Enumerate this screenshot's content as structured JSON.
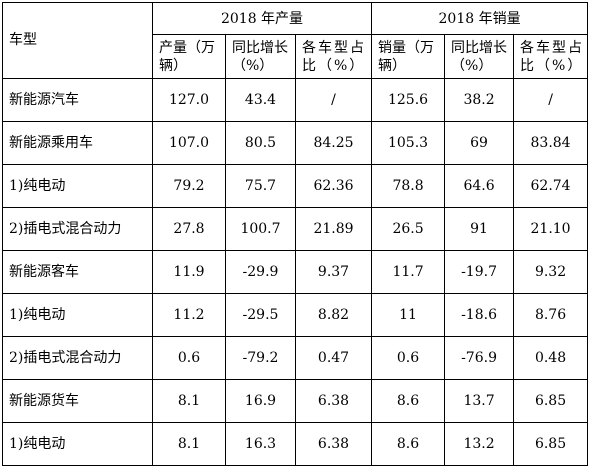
{
  "header": {
    "corner_label": "车型",
    "group_production": "2018 年产量",
    "group_sales": "2018 年销量",
    "columns": [
      "产量（万辆）",
      "同比增长（%）",
      "各车型占比（%）",
      "销量（万辆）",
      "同比增长（%）",
      "各车型占比（%）"
    ]
  },
  "rows": [
    {
      "label": "新能源汽车",
      "values": [
        "127.0",
        "43.4",
        "/",
        "125.6",
        "38.2",
        "/"
      ]
    },
    {
      "label": "新能源乘用车",
      "values": [
        "107.0",
        "80.5",
        "84.25",
        "105.3",
        "69",
        "83.84"
      ]
    },
    {
      "label": "1)纯电动",
      "values": [
        "79.2",
        "75.7",
        "62.36",
        "78.8",
        "64.6",
        "62.74"
      ]
    },
    {
      "label": "2)插电式混合动力",
      "values": [
        "27.8",
        "100.7",
        "21.89",
        "26.5",
        "91",
        "21.10"
      ]
    },
    {
      "label": "新能源客车",
      "values": [
        "11.9",
        "-29.9",
        "9.37",
        "11.7",
        "-19.7",
        "9.32"
      ]
    },
    {
      "label": "1)纯电动",
      "values": [
        "11.2",
        "-29.5",
        "8.82",
        "11",
        "-18.6",
        "8.76"
      ]
    },
    {
      "label": "2)插电式混合动力",
      "values": [
        "0.6",
        "-79.2",
        "0.47",
        "0.6",
        "-76.9",
        "0.48"
      ]
    },
    {
      "label": "新能源货车",
      "values": [
        "8.1",
        "16.9",
        "6.38",
        "8.6",
        "13.7",
        "6.85"
      ]
    },
    {
      "label": "1)纯电动",
      "values": [
        "8.1",
        "16.3",
        "6.38",
        "8.6",
        "13.2",
        "6.85"
      ]
    }
  ]
}
